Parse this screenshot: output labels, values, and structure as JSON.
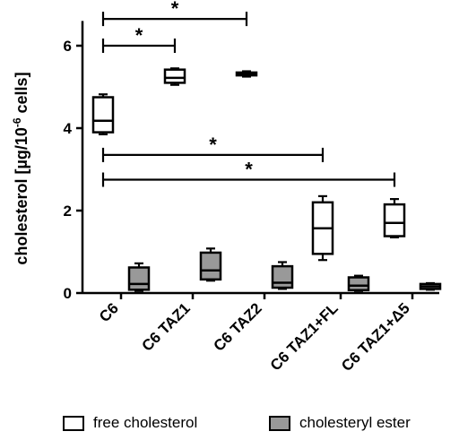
{
  "chart_data": {
    "type": "box",
    "ylabel": "cholesterol [µg/10",
    "ylabel_sup": "-6",
    "ylabel_tail": " cells]",
    "ylim": [
      0,
      6.6
    ],
    "yticks": [
      0,
      2,
      4,
      6
    ],
    "categories": [
      "C6",
      "C6 TAZ1",
      "C6 TAZ2",
      "C6 TAZ1+FL",
      "C6 TAZ1+Δ5"
    ],
    "series": [
      {
        "name": "free cholesterol",
        "color": "#ffffff",
        "boxes": [
          {
            "min": 3.85,
            "q1": 3.9,
            "median": 4.18,
            "q3": 4.75,
            "max": 4.82
          },
          {
            "min": 5.05,
            "q1": 5.1,
            "median": 5.22,
            "q3": 5.42,
            "max": 5.45
          },
          {
            "min": 5.25,
            "q1": 5.28,
            "median": 5.31,
            "q3": 5.35,
            "max": 5.38
          },
          {
            "min": 0.8,
            "q1": 0.95,
            "median": 1.57,
            "q3": 2.2,
            "max": 2.35
          },
          {
            "min": 1.35,
            "q1": 1.38,
            "median": 1.7,
            "q3": 2.15,
            "max": 2.28
          }
        ]
      },
      {
        "name": "cholesteryl ester",
        "color": "#999999",
        "boxes": [
          {
            "min": 0.05,
            "q1": 0.08,
            "median": 0.22,
            "q3": 0.62,
            "max": 0.72
          },
          {
            "min": 0.3,
            "q1": 0.33,
            "median": 0.55,
            "q3": 0.98,
            "max": 1.08
          },
          {
            "min": 0.1,
            "q1": 0.13,
            "median": 0.25,
            "q3": 0.65,
            "max": 0.75
          },
          {
            "min": 0.05,
            "q1": 0.07,
            "median": 0.18,
            "q3": 0.38,
            "max": 0.42
          },
          {
            "min": 0.08,
            "q1": 0.1,
            "median": 0.16,
            "q3": 0.22,
            "max": 0.24
          }
        ]
      }
    ],
    "significance": [
      {
        "label": "*",
        "from": 0,
        "to": 1,
        "y": 6.0
      },
      {
        "label": "*",
        "from": 0,
        "to": 2,
        "y": 6.65
      },
      {
        "label": "*",
        "from": 0,
        "to": 3,
        "y": 3.35
      },
      {
        "label": "*",
        "from": 0,
        "to": 4,
        "y": 2.75
      }
    ],
    "grid": false,
    "legend_position": "bottom"
  }
}
